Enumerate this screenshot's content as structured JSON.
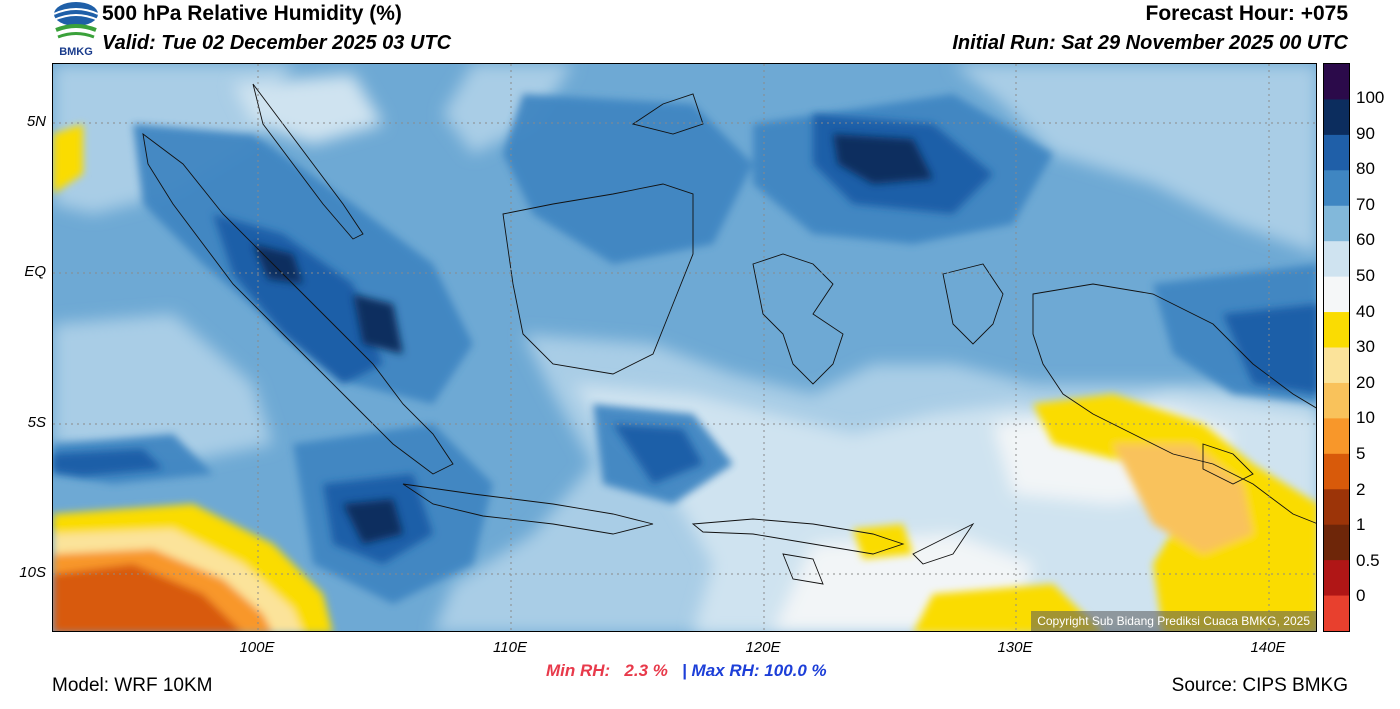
{
  "header": {
    "title": "500 hPa Relative Humidity (%)",
    "valid": "Valid: Tue 02 December 2025 03 UTC",
    "forecast_hour": "Forecast Hour: +075",
    "initial_run": "Initial Run: Sat 29 November 2025 00 UTC",
    "logo_text": "BMKG"
  },
  "map": {
    "lat_labels": [
      "5N",
      "EQ",
      "5S",
      "10S"
    ],
    "lon_labels": [
      "100E",
      "110E",
      "120E",
      "130E",
      "140E"
    ],
    "copyright": "Copyright Sub Bidang Prediksi Cuaca BMKG, 2025"
  },
  "colorbar": {
    "labels": [
      "100",
      "90",
      "80",
      "70",
      "60",
      "50",
      "40",
      "30",
      "20",
      "10",
      "5",
      "2",
      "1",
      "0.5",
      "0"
    ],
    "colors": [
      "#2b0a4a",
      "#0c2d5e",
      "#1f5fa8",
      "#3f86c2",
      "#82b8da",
      "#cfe3f0",
      "#f5f7f8",
      "#fadc02",
      "#fbe39a",
      "#f9c25b",
      "#f8972a",
      "#d85a0a",
      "#9c3408",
      "#6e2609",
      "#b01616",
      "#e8402e"
    ]
  },
  "stats": {
    "min_label": "Min RH:",
    "min_value": "2.3 %",
    "separator": "|",
    "max_label": "Max RH: 100.0 %"
  },
  "footer": {
    "model": "Model: WRF 10KM",
    "source": "Source: CIPS BMKG"
  }
}
